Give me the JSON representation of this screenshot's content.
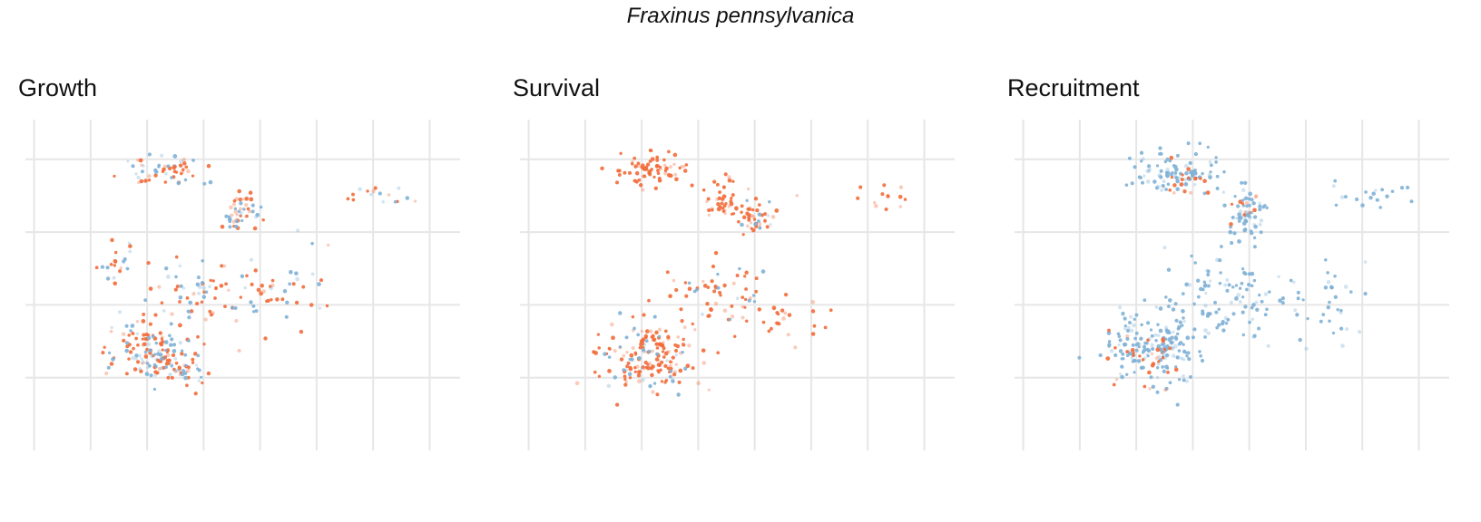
{
  "figure": {
    "title": "Fraxinus pennsylvanica"
  },
  "colors": {
    "orange": "#f26b3a",
    "light_orange": "#f9b8a0",
    "blue": "#7fb1d6",
    "light_blue": "#c5dcec",
    "grid": "#e6e6e6"
  },
  "chart_data": [
    {
      "type": "scatter",
      "title": "Growth",
      "xlabel": "",
      "ylabel": "",
      "xlim": [
        0,
        1
      ],
      "ylim": [
        0,
        1
      ],
      "grid": true,
      "x_gridlines": [
        0.02,
        0.15,
        0.28,
        0.41,
        0.54,
        0.67,
        0.8,
        0.93
      ],
      "y_gridlines": [
        0.22,
        0.44,
        0.66,
        0.88
      ],
      "series": [
        {
          "color": "#f26b3a",
          "weight": 0.46,
          "clusters": [
            [
              0.27,
              0.3,
              0.08,
              0.08,
              120
            ],
            [
              0.34,
              0.26,
              0.06,
              0.06,
              90
            ],
            [
              0.32,
              0.85,
              0.07,
              0.04,
              70
            ],
            [
              0.5,
              0.73,
              0.04,
              0.05,
              60
            ],
            [
              0.43,
              0.46,
              0.12,
              0.1,
              90
            ],
            [
              0.6,
              0.5,
              0.1,
              0.1,
              40
            ],
            [
              0.81,
              0.77,
              0.07,
              0.03,
              20
            ],
            [
              0.22,
              0.58,
              0.05,
              0.06,
              25
            ]
          ]
        },
        {
          "color": "#7fb1d6",
          "weight": 0.34,
          "clusters": [
            [
              0.27,
              0.3,
              0.08,
              0.08,
              120
            ],
            [
              0.34,
              0.26,
              0.06,
              0.06,
              90
            ],
            [
              0.32,
              0.85,
              0.07,
              0.04,
              70
            ],
            [
              0.5,
              0.73,
              0.04,
              0.05,
              60
            ],
            [
              0.43,
              0.46,
              0.12,
              0.1,
              90
            ],
            [
              0.6,
              0.5,
              0.1,
              0.1,
              40
            ],
            [
              0.81,
              0.77,
              0.07,
              0.03,
              20
            ],
            [
              0.22,
              0.58,
              0.05,
              0.06,
              25
            ]
          ]
        }
      ]
    },
    {
      "type": "scatter",
      "title": "Survival",
      "xlabel": "",
      "ylabel": "",
      "xlim": [
        0,
        1
      ],
      "ylim": [
        0,
        1
      ],
      "grid": true,
      "x_gridlines": [
        0.02,
        0.15,
        0.28,
        0.41,
        0.54,
        0.67,
        0.8,
        0.93
      ],
      "y_gridlines": [
        0.22,
        0.44,
        0.66,
        0.88
      ],
      "series": [
        {
          "color": "#f26b3a",
          "weight": 0.72,
          "clusters": [
            [
              0.3,
              0.28,
              0.09,
              0.09,
              200
            ],
            [
              0.32,
              0.85,
              0.08,
              0.04,
              100
            ],
            [
              0.46,
              0.76,
              0.05,
              0.05,
              60
            ],
            [
              0.54,
              0.7,
              0.04,
              0.04,
              50
            ],
            [
              0.46,
              0.47,
              0.09,
              0.08,
              70
            ],
            [
              0.62,
              0.4,
              0.08,
              0.07,
              30
            ],
            [
              0.81,
              0.77,
              0.07,
              0.03,
              20
            ]
          ]
        },
        {
          "color": "#7fb1d6",
          "weight": 0.18,
          "clusters": [
            [
              0.3,
              0.28,
              0.09,
              0.09,
              200
            ],
            [
              0.54,
              0.7,
              0.04,
              0.04,
              50
            ],
            [
              0.46,
              0.47,
              0.09,
              0.08,
              70
            ]
          ]
        }
      ]
    },
    {
      "type": "scatter",
      "title": "Recruitment",
      "xlabel": "",
      "ylabel": "",
      "xlim": [
        0,
        1
      ],
      "ylim": [
        0,
        1
      ],
      "grid": true,
      "x_gridlines": [
        0.02,
        0.15,
        0.28,
        0.41,
        0.54,
        0.67,
        0.8,
        0.93
      ],
      "y_gridlines": [
        0.22,
        0.44,
        0.66,
        0.88
      ],
      "series": [
        {
          "color": "#7fb1d6",
          "weight": 0.78,
          "clusters": [
            [
              0.32,
              0.32,
              0.1,
              0.09,
              220
            ],
            [
              0.37,
              0.84,
              0.08,
              0.05,
              120
            ],
            [
              0.53,
              0.72,
              0.04,
              0.06,
              80
            ],
            [
              0.5,
              0.47,
              0.12,
              0.1,
              120
            ],
            [
              0.7,
              0.45,
              0.1,
              0.1,
              50
            ],
            [
              0.82,
              0.77,
              0.08,
              0.04,
              25
            ]
          ]
        },
        {
          "color": "#f26b3a",
          "weight": 0.14,
          "clusters": [
            [
              0.3,
              0.28,
              0.09,
              0.09,
              220
            ],
            [
              0.4,
              0.8,
              0.06,
              0.04,
              120
            ],
            [
              0.53,
              0.72,
              0.04,
              0.06,
              80
            ]
          ]
        }
      ]
    }
  ]
}
